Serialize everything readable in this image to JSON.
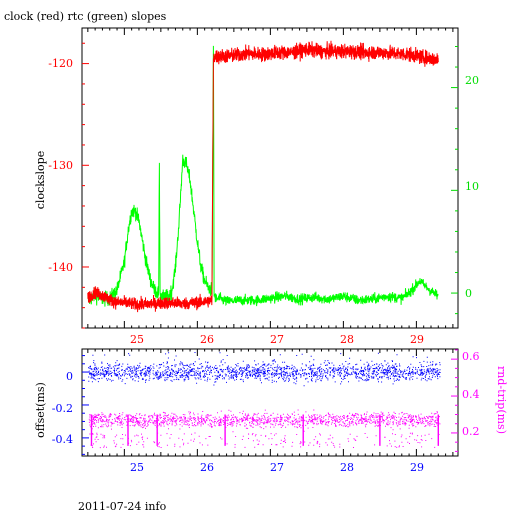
{
  "footer_text": "2011-07-24 info",
  "chart_data": [
    {
      "type": "line",
      "title": "clock (red) rtc (green) slopes",
      "ylabel": "clockslope",
      "x_ticks": [
        25,
        26,
        27,
        28,
        29
      ],
      "xlim": [
        24.42,
        29.57
      ],
      "ylim": [
        -146.0,
        -116.5
      ],
      "y_ticks": [
        -120,
        -130,
        -140
      ],
      "y2lim": [
        -3.4,
        25.8
      ],
      "y2_ticks": [
        20,
        10,
        0
      ],
      "colors": {
        "clock": "#ff0000",
        "rtc": "#00ff00"
      },
      "series": [
        {
          "name": "clock (red)",
          "x": [
            24.5,
            24.6,
            24.7,
            24.8,
            24.9,
            25.0,
            25.2,
            25.4,
            25.6,
            25.8,
            26.0,
            26.1,
            26.2,
            26.22,
            26.24,
            26.3,
            26.5,
            26.7,
            26.9,
            27.1,
            27.3,
            27.5,
            27.7,
            27.9,
            28.1,
            28.3,
            28.5,
            28.7,
            28.9,
            29.1,
            29.3
          ],
          "y": [
            -143,
            -142.5,
            -142.8,
            -143.2,
            -143.5,
            -143.5,
            -143.7,
            -143.6,
            -143.5,
            -143.6,
            -143.5,
            -143.4,
            -143.3,
            -119.5,
            -119.3,
            -119.3,
            -119.2,
            -119.0,
            -119.1,
            -118.9,
            -118.9,
            -118.6,
            -118.8,
            -118.8,
            -118.8,
            -118.9,
            -118.9,
            -119.0,
            -119.1,
            -119.4,
            -119.6
          ]
        },
        {
          "name": "rtc (green)",
          "x": [
            24.5,
            24.6,
            24.7,
            24.8,
            24.9,
            25.0,
            25.05,
            25.1,
            25.15,
            25.2,
            25.25,
            25.3,
            25.35,
            25.4,
            25.45,
            25.47,
            25.48,
            25.49,
            25.5,
            25.55,
            25.6,
            25.65,
            25.7,
            25.75,
            25.8,
            25.85,
            25.9,
            25.95,
            26.0,
            26.05,
            26.1,
            26.15,
            26.2,
            26.22,
            26.23,
            26.24,
            26.26,
            26.3,
            26.4,
            26.6,
            26.8,
            27.0,
            27.2,
            27.4,
            27.6,
            27.8,
            28.0,
            28.2,
            28.4,
            28.6,
            28.8,
            28.9,
            29.0,
            29.05,
            29.1,
            29.2,
            29.3
          ],
          "y": [
            -0.8,
            -0.2,
            -0.6,
            -0.5,
            0.3,
            3,
            6,
            8,
            8,
            7,
            5,
            3,
            1.5,
            0.5,
            0,
            0,
            12.5,
            0,
            -0.3,
            -0.4,
            -0.3,
            0.2,
            2.5,
            7,
            13,
            12.5,
            11,
            8,
            5,
            2.5,
            1.2,
            0.5,
            0.3,
            24,
            0,
            -0.4,
            -0.6,
            -0.5,
            -0.8,
            -0.7,
            -0.7,
            -0.5,
            -0.3,
            -0.6,
            -0.4,
            -0.6,
            -0.3,
            -0.7,
            -0.6,
            -0.3,
            -0.5,
            0,
            0.8,
            1.2,
            0.8,
            0.2,
            -0.3
          ]
        }
      ]
    },
    {
      "type": "scatter",
      "ylabel": "offset(ms)",
      "y2label": "rnd-trip(ms)",
      "x_ticks": [
        25,
        26,
        27,
        28,
        29
      ],
      "xlim": [
        24.42,
        29.57
      ],
      "ylim": [
        -0.51,
        0.14
      ],
      "y_ticks": [
        0,
        -0.2,
        -0.4
      ],
      "y2lim": [
        0.075,
        0.655
      ],
      "y2_ticks": [
        0.6,
        0.4,
        0.2
      ],
      "colors": {
        "offset": "#0000ff",
        "roundtrip": "#ff00ff"
      },
      "series": [
        {
          "name": "offset(ms)",
          "x_range": [
            24.5,
            29.32
          ],
          "center": 0.0,
          "spread": 0.05,
          "extremes": [
            -0.06,
            0.12
          ]
        },
        {
          "name": "rnd-trip(ms)",
          "x_range": [
            24.5,
            29.32
          ],
          "center": 0.27,
          "spread": 0.04,
          "sparse_low": [
            0.12,
            0.2
          ],
          "spikes_x": [
            24.55,
            25.05,
            25.45,
            26.38,
            27.45,
            28.5,
            29.3
          ]
        }
      ]
    }
  ]
}
